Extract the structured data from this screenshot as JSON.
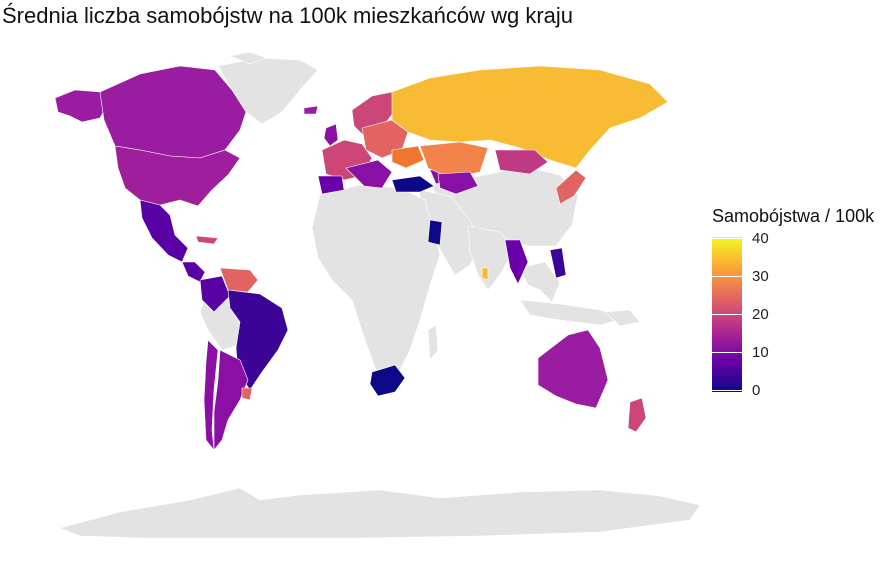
{
  "title": "Średnia liczba samobójstw na 100k mieszkańców wg kraju",
  "legend": {
    "title": "Samobójstwa / 100k",
    "ticks": [
      "40",
      "30",
      "20",
      "10",
      "0"
    ],
    "range": [
      0,
      40
    ],
    "palette": "plasma",
    "colors": [
      "#0d0887",
      "#6a00a8",
      "#b12a90",
      "#e16462",
      "#fca636",
      "#f0f921"
    ]
  },
  "map": {
    "no_data_color": "#e3e3e3",
    "border_color": "#ffffff"
  }
}
